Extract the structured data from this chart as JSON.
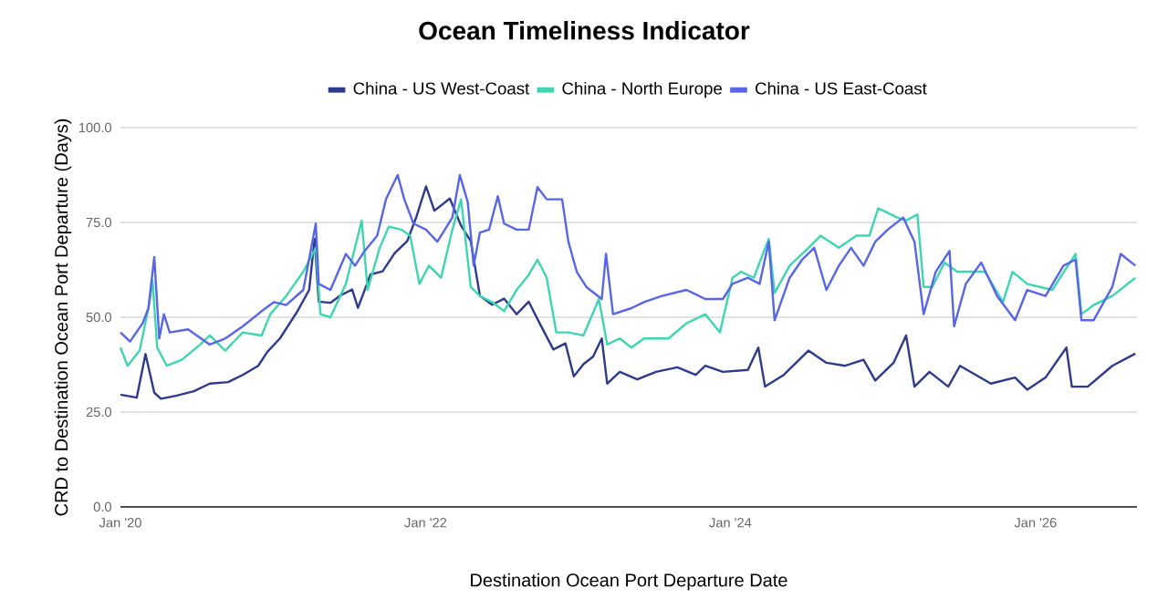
{
  "chart_data": {
    "type": "line",
    "title": "Ocean Timeliness Indicator",
    "xlabel": "Destination Ocean Port Departure Date",
    "ylabel": "CRD to Destination Ocean Port Departure (Days)",
    "xlim": [
      "2020-01-01",
      "2026-09-01"
    ],
    "xticks": [
      {
        "value": "2020-01-01",
        "label": "Jan '20"
      },
      {
        "value": "2022-01-01",
        "label": "Jan '22"
      },
      {
        "value": "2024-01-01",
        "label": "Jan '24"
      },
      {
        "value": "2026-01-01",
        "label": "Jan '26"
      }
    ],
    "ylim": [
      0,
      100
    ],
    "yticks": [
      {
        "value": 0,
        "label": "0.0"
      },
      {
        "value": 25,
        "label": "25.0"
      },
      {
        "value": 50,
        "label": "50.0"
      },
      {
        "value": 75,
        "label": "75.0"
      },
      {
        "value": 100,
        "label": "100.0"
      }
    ],
    "grid": "y",
    "legend": "top",
    "marker": "none",
    "line_style": "solid",
    "series": [
      {
        "name": "China - US West-Coast",
        "color": "#2e3a8c",
        "x": [
          "2020-01-01",
          "2020-02-09",
          "2020-03-01",
          "2020-03-22",
          "2020-04-07",
          "2020-05-13",
          "2020-06-25",
          "2020-08-02",
          "2020-09-15",
          "2020-10-20",
          "2020-11-26",
          "2020-12-18",
          "2021-01-17",
          "2021-02-28",
          "2021-03-28",
          "2021-04-10",
          "2021-04-20",
          "2021-05-18",
          "2021-06-10",
          "2021-07-09",
          "2021-07-23",
          "2021-08-22",
          "2021-09-20",
          "2021-10-19",
          "2021-11-18",
          "2021-12-10",
          "2022-01-02",
          "2022-01-22",
          "2022-02-28",
          "2022-03-27",
          "2022-04-19",
          "2022-05-11",
          "2022-06-09",
          "2022-07-08",
          "2022-08-07",
          "2022-09-05",
          "2022-10-04",
          "2022-11-03",
          "2022-12-02",
          "2022-12-22",
          "2023-01-14",
          "2023-02-06",
          "2023-02-27",
          "2023-03-12",
          "2023-04-11",
          "2023-05-23",
          "2023-07-07",
          "2023-08-27",
          "2023-10-10",
          "2023-11-02",
          "2023-12-14",
          "2024-02-12",
          "2024-03-08",
          "2024-03-24",
          "2024-05-08",
          "2024-07-06",
          "2024-08-18",
          "2024-10-02",
          "2024-11-15",
          "2024-12-13",
          "2025-01-26",
          "2025-02-25",
          "2025-03-17",
          "2025-04-22",
          "2025-06-06",
          "2025-07-04",
          "2025-09-16",
          "2025-11-13",
          "2025-12-12",
          "2026-01-25",
          "2026-03-16",
          "2026-03-29",
          "2026-05-06",
          "2026-07-04",
          "2026-08-28"
        ],
        "values": [
          29.6,
          28.8,
          40.3,
          30.1,
          28.5,
          29.3,
          30.5,
          32.5,
          32.9,
          34.8,
          37.2,
          40.9,
          44.4,
          51.6,
          57.2,
          70.7,
          54.1,
          53.8,
          55.7,
          57.3,
          52.5,
          61.3,
          62.1,
          66.9,
          70.1,
          76.5,
          84.5,
          78.1,
          81.3,
          74.1,
          70.1,
          55.7,
          53.3,
          54.9,
          50.8,
          54.1,
          47.8,
          41.5,
          43.1,
          34.4,
          37.6,
          39.6,
          44.4,
          32.5,
          35.6,
          33.6,
          35.6,
          36.8,
          34.8,
          37.2,
          35.6,
          36.1,
          42.0,
          31.7,
          34.8,
          41.2,
          38.0,
          37.2,
          38.8,
          33.3,
          38.0,
          45.2,
          31.7,
          35.6,
          31.7,
          37.2,
          32.5,
          34.1,
          30.9,
          34.1,
          42.0,
          31.7,
          31.7,
          37.2,
          40.4
        ]
      },
      {
        "name": "China - North Europe",
        "color": "#3ed6b2",
        "x": [
          "2020-01-01",
          "2020-01-18",
          "2020-02-16",
          "2020-03-08",
          "2020-03-18",
          "2020-03-29",
          "2020-04-21",
          "2020-05-27",
          "2020-07-10",
          "2020-08-02",
          "2020-09-08",
          "2020-10-20",
          "2020-12-04",
          "2020-12-25",
          "2021-02-01",
          "2021-03-14",
          "2021-04-13",
          "2021-04-24",
          "2021-05-18",
          "2021-06-24",
          "2021-08-01",
          "2021-08-15",
          "2021-09-13",
          "2021-10-05",
          "2021-11-04",
          "2021-11-25",
          "2021-12-17",
          "2022-01-09",
          "2022-02-07",
          "2022-03-06",
          "2022-03-27",
          "2022-04-19",
          "2022-05-11",
          "2022-06-09",
          "2022-07-08",
          "2022-08-07",
          "2022-09-05",
          "2022-09-26",
          "2022-10-18",
          "2022-11-10",
          "2022-12-09",
          "2023-01-14",
          "2023-02-20",
          "2023-03-12",
          "2023-04-11",
          "2023-05-09",
          "2023-06-08",
          "2023-08-06",
          "2023-09-18",
          "2023-11-02",
          "2023-12-07",
          "2024-01-06",
          "2024-01-27",
          "2024-02-26",
          "2024-04-02",
          "2024-04-16",
          "2024-05-22",
          "2024-07-06",
          "2024-08-04",
          "2024-09-17",
          "2024-10-29",
          "2024-11-29",
          "2024-12-20",
          "2025-01-05",
          "2025-02-04",
          "2025-02-25",
          "2025-03-24",
          "2025-04-08",
          "2025-04-29",
          "2025-05-28",
          "2025-06-27",
          "2025-09-02",
          "2025-10-15",
          "2025-11-07",
          "2025-12-12",
          "2026-02-10",
          "2026-04-07",
          "2026-04-21",
          "2026-05-20",
          "2026-07-04",
          "2026-08-28"
        ],
        "values": [
          42.0,
          37.2,
          41.2,
          52.4,
          59.6,
          42.0,
          37.2,
          38.8,
          42.8,
          45.2,
          41.2,
          46.0,
          45.2,
          50.8,
          55.6,
          62.0,
          68.3,
          50.8,
          50.0,
          58.8,
          75.5,
          57.2,
          68.3,
          73.9,
          73.1,
          71.5,
          58.8,
          63.6,
          60.4,
          73.1,
          81.1,
          58.0,
          55.6,
          54.0,
          51.6,
          57.2,
          61.2,
          65.2,
          60.4,
          46.0,
          46.0,
          45.2,
          54.8,
          42.8,
          44.4,
          42.0,
          44.4,
          44.4,
          48.4,
          50.8,
          46.0,
          60.4,
          62.0,
          60.4,
          70.7,
          56.4,
          63.6,
          68.3,
          71.5,
          68.3,
          71.5,
          71.5,
          78.7,
          77.9,
          76.3,
          75.5,
          77.1,
          58.0,
          58.0,
          64.4,
          62.0,
          62.0,
          54.0,
          62.0,
          58.8,
          57.2,
          66.7,
          50.8,
          53.2,
          55.6,
          60.4
        ]
      },
      {
        "name": "China - US East-Coast",
        "color": "#5765e8",
        "x": [
          "2020-01-01",
          "2020-01-24",
          "2020-02-23",
          "2020-03-08",
          "2020-03-22",
          "2020-04-03",
          "2020-04-14",
          "2020-04-28",
          "2020-06-11",
          "2020-08-02",
          "2020-09-08",
          "2020-10-20",
          "2020-12-04",
          "2021-01-03",
          "2021-02-01",
          "2021-03-14",
          "2021-04-13",
          "2021-04-20",
          "2021-05-18",
          "2021-06-24",
          "2021-07-16",
          "2021-08-08",
          "2021-09-07",
          "2021-09-28",
          "2021-10-26",
          "2021-11-11",
          "2021-12-03",
          "2022-01-02",
          "2022-01-29",
          "2022-03-06",
          "2022-03-24",
          "2022-04-12",
          "2022-04-26",
          "2022-05-11",
          "2022-06-02",
          "2022-06-23",
          "2022-07-08",
          "2022-08-07",
          "2022-09-05",
          "2022-09-26",
          "2022-10-18",
          "2022-11-24",
          "2022-12-09",
          "2022-12-29",
          "2023-01-21",
          "2023-02-27",
          "2023-03-09",
          "2023-03-26",
          "2023-05-09",
          "2023-06-08",
          "2023-07-21",
          "2023-09-18",
          "2023-11-02",
          "2023-12-14",
          "2024-01-06",
          "2024-02-12",
          "2024-03-11",
          "2024-04-02",
          "2024-04-16",
          "2024-05-22",
          "2024-06-21",
          "2024-07-20",
          "2024-08-18",
          "2024-09-17",
          "2024-10-16",
          "2024-11-15",
          "2024-12-13",
          "2025-01-12",
          "2025-02-18",
          "2025-03-17",
          "2025-04-08",
          "2025-05-07",
          "2025-06-09",
          "2025-06-20",
          "2025-07-18",
          "2025-08-24",
          "2025-10-01",
          "2025-11-13",
          "2025-12-12",
          "2026-01-25",
          "2026-03-09",
          "2026-04-07",
          "2026-04-21",
          "2026-05-20",
          "2026-07-04",
          "2026-07-24",
          "2026-08-28"
        ],
        "values": [
          46.0,
          43.6,
          48.4,
          52.4,
          65.9,
          44.4,
          50.8,
          46.0,
          46.8,
          42.8,
          44.4,
          47.6,
          51.6,
          54.0,
          53.2,
          57.2,
          74.7,
          58.8,
          57.2,
          66.7,
          63.6,
          67.5,
          71.5,
          81.1,
          87.5,
          81.1,
          74.7,
          73.1,
          69.9,
          76.3,
          87.5,
          80.3,
          63.6,
          72.3,
          73.1,
          81.9,
          74.7,
          73.1,
          73.1,
          84.3,
          81.1,
          81.1,
          69.9,
          62.0,
          58.0,
          54.8,
          66.7,
          50.8,
          52.4,
          54.0,
          55.6,
          57.2,
          54.8,
          54.8,
          58.8,
          60.4,
          58.8,
          69.9,
          49.2,
          60.4,
          65.2,
          68.3,
          57.2,
          63.6,
          68.3,
          63.6,
          69.9,
          73.1,
          76.3,
          69.9,
          50.8,
          62.0,
          67.5,
          47.6,
          58.8,
          64.4,
          55.6,
          49.2,
          57.2,
          55.6,
          63.6,
          65.2,
          49.2,
          49.2,
          58.0,
          66.7,
          63.6
        ]
      }
    ]
  }
}
